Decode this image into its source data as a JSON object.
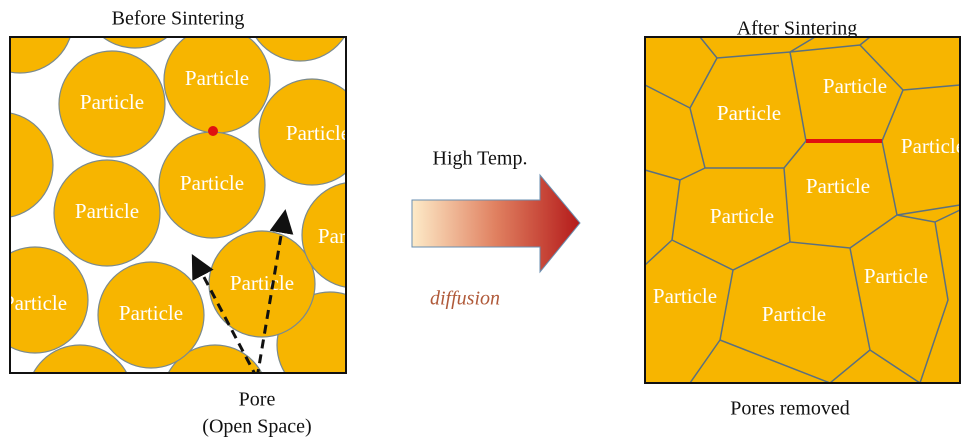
{
  "before": {
    "title": "Before Sintering",
    "particles": [
      "Particle",
      "Particle",
      "Particle",
      "Particle",
      "Particle",
      "Particle",
      "Particle",
      "Particle",
      "Particle"
    ],
    "pore_label": "Pore",
    "pore_sublabel": "(Open Space)"
  },
  "process": {
    "top_label": "High Temp.",
    "bottom_label": "diffusion"
  },
  "after": {
    "title": "After Sintering",
    "particles": [
      "Particle",
      "Particle",
      "Particle",
      "Particle",
      "Particle",
      "Particle",
      "Particle",
      "Particle"
    ],
    "caption": "Pores removed"
  }
}
